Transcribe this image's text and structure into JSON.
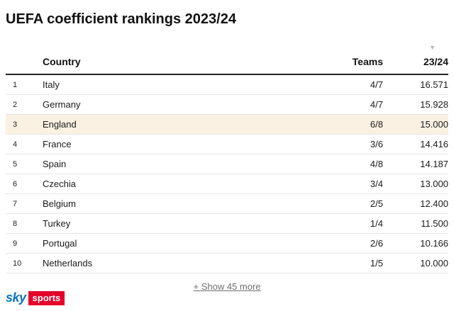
{
  "title": "UEFA coefficient rankings 2023/24",
  "chart_data": {
    "type": "table",
    "title": "UEFA coefficient rankings 2023/24",
    "columns": {
      "rank": "",
      "country": "Country",
      "teams": "Teams",
      "season": "23/24"
    },
    "sort": {
      "column": "23/24",
      "direction": "descending",
      "icon": "▼"
    },
    "rows": [
      {
        "rank": "1",
        "country": "Italy",
        "teams": "4/7",
        "coefficient": "16.571",
        "highlight": false
      },
      {
        "rank": "2",
        "country": "Germany",
        "teams": "4/7",
        "coefficient": "15.928",
        "highlight": false
      },
      {
        "rank": "3",
        "country": "England",
        "teams": "6/8",
        "coefficient": "15.000",
        "highlight": true
      },
      {
        "rank": "4",
        "country": "France",
        "teams": "3/6",
        "coefficient": "14.416",
        "highlight": false
      },
      {
        "rank": "5",
        "country": "Spain",
        "teams": "4/8",
        "coefficient": "14.187",
        "highlight": false
      },
      {
        "rank": "6",
        "country": "Czechia",
        "teams": "3/4",
        "coefficient": "13.000",
        "highlight": false
      },
      {
        "rank": "7",
        "country": "Belgium",
        "teams": "2/5",
        "coefficient": "12.400",
        "highlight": false
      },
      {
        "rank": "8",
        "country": "Turkey",
        "teams": "1/4",
        "coefficient": "11.500",
        "highlight": false
      },
      {
        "rank": "9",
        "country": "Portugal",
        "teams": "2/6",
        "coefficient": "10.166",
        "highlight": false
      },
      {
        "rank": "10",
        "country": "Netherlands",
        "teams": "1/5",
        "coefficient": "10.000",
        "highlight": false
      }
    ]
  },
  "show_more_label": "+ Show 45 more",
  "footer": {
    "sky": "sky",
    "sports": "sports"
  },
  "colors": {
    "highlight_row": "#faf1e2",
    "header_rule": "#222222",
    "row_divider": "#e7e7e7",
    "sky_blue": "#0b74b8",
    "sports_red": "#e4002b",
    "sort_icon": "#b5b5b5"
  }
}
